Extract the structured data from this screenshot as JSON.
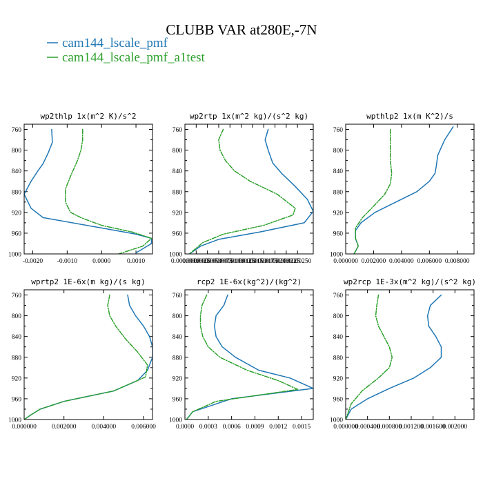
{
  "figure": {
    "title": "CLUBB VAR at280E,-7N",
    "legend": [
      {
        "label": "cam144_lscale_pmf",
        "color": "#1f77b4",
        "dash": "solid"
      },
      {
        "label": "cam144_lscale_pmf_a1test",
        "color": "#2ca02c",
        "dash": "dashdot"
      }
    ]
  },
  "chart_data": [
    {
      "type": "line",
      "title": "wp2thlp   1x(m^2 K)/s^2",
      "xlim": [
        -0.00225,
        0.00148
      ],
      "ylim": [
        1000,
        750
      ],
      "xticks": [
        -0.002,
        -0.001,
        0.0,
        0.001
      ],
      "xtick_labels": [
        "-0.0020",
        "-0.0010",
        "0.0000",
        "0.0010"
      ],
      "yticks": [
        760,
        800,
        840,
        880,
        920,
        960,
        1000
      ],
      "ytick_labels": [
        "760",
        "800",
        "840",
        "880",
        "920",
        "960",
        "1000"
      ],
      "series": [
        {
          "name": "cam144_lscale_pmf",
          "color": "#1f77b4",
          "dash": "solid",
          "x": [
            -0.00145,
            -0.00143,
            -0.00155,
            -0.0017,
            -0.00185,
            -0.00205,
            -0.00225,
            -0.00205,
            -0.0017,
            0.0,
            0.001,
            0.00145,
            0.00145,
            0.001
          ],
          "y": [
            760,
            785,
            805,
            826,
            840,
            860,
            885,
            912,
            930,
            950,
            962,
            970,
            980,
            998
          ]
        },
        {
          "name": "cam144_lscale_pmf_a1test",
          "color": "#2ca02c",
          "dash": "dashdot",
          "x": [
            -0.00055,
            -0.00055,
            -0.0006,
            -0.0007,
            -0.0009,
            -0.00105,
            -0.00105,
            -0.0009,
            -0.0006,
            0.0,
            0.0009,
            0.00145,
            0.0012,
            0.0005
          ],
          "y": [
            760,
            780,
            800,
            820,
            850,
            875,
            900,
            920,
            930,
            945,
            958,
            970,
            985,
            1000
          ]
        }
      ]
    },
    {
      "type": "line",
      "title": "wp2rtp   1x(m^2 kg)/(s^2 kg)",
      "xlim": [
        0.0,
        2.85e-05
      ],
      "ylim": [
        1000,
        750
      ],
      "xticks": [
        0.0,
        2.5e-06,
        5e-06,
        7.5e-06,
        1e-05,
        1.25e-05,
        1.5e-05,
        1.75e-05,
        2e-05,
        2.25e-05,
        2.5e-05
      ],
      "xtick_labels": [
        "0.0000000",
        "0.0000025",
        "0.0000050",
        "0.0000075",
        "0.0000100",
        "0.0000125",
        "0.0000150",
        "0.0000175",
        "0.0000200",
        "0.0000225",
        "0.0000250"
      ],
      "yticks": [
        760,
        800,
        840,
        880,
        920,
        960,
        1000
      ],
      "ytick_labels": [
        "760",
        "800",
        "840",
        "880",
        "920",
        "960",
        "1000"
      ],
      "series": [
        {
          "name": "cam144_lscale_pmf",
          "color": "#1f77b4",
          "dash": "solid",
          "x": [
            1.85e-05,
            1.78e-05,
            1.85e-05,
            1.95e-05,
            2.15e-05,
            2.45e-05,
            2.72e-05,
            2.85e-05,
            2.65e-05,
            1.65e-05,
            7.5e-06,
            3.5e-06,
            1e-06
          ],
          "y": [
            760,
            780,
            800,
            825,
            845,
            870,
            895,
            918,
            940,
            958,
            972,
            985,
            1000
          ]
        },
        {
          "name": "cam144_lscale_pmf_a1test",
          "color": "#2ca02c",
          "dash": "dashdot",
          "x": [
            8.5e-06,
            7.5e-06,
            7.8e-06,
            9e-06,
            1.1e-05,
            1.45e-05,
            2.05e-05,
            2.45e-05,
            2.4e-05,
            1.75e-05,
            8.5e-06,
            4e-06,
            1e-06
          ],
          "y": [
            760,
            780,
            800,
            820,
            840,
            860,
            885,
            912,
            925,
            945,
            962,
            978,
            1000
          ]
        }
      ]
    },
    {
      "type": "line",
      "title": "wpthlp2   1x(m K^2)/s",
      "xlim": [
        0.0,
        0.0092
      ],
      "ylim": [
        1000,
        750
      ],
      "xticks": [
        0.0,
        0.002,
        0.004,
        0.006,
        0.008
      ],
      "xtick_labels": [
        "0.000000",
        "0.002000",
        "0.004000",
        "0.006000",
        "0.008000"
      ],
      "yticks": [
        760,
        800,
        840,
        880,
        920,
        960,
        1000
      ],
      "ytick_labels": [
        "760",
        "800",
        "840",
        "880",
        "920",
        "960",
        "1000"
      ],
      "series": [
        {
          "name": "cam144_lscale_pmf",
          "color": "#1f77b4",
          "dash": "solid",
          "x": [
            0.0077,
            0.0071,
            0.0066,
            0.0065,
            0.0064,
            0.006,
            0.0051,
            0.0036,
            0.0021,
            0.0011,
            0.0007,
            0.0007,
            0.0009,
            0.0006
          ],
          "y": [
            755,
            780,
            810,
            830,
            845,
            860,
            880,
            900,
            920,
            940,
            955,
            970,
            985,
            1000
          ]
        },
        {
          "name": "cam144_lscale_pmf_a1test",
          "color": "#2ca02c",
          "dash": "dashdot",
          "x": [
            0.0032,
            0.0032,
            0.0032,
            0.0033,
            0.0032,
            0.0028,
            0.0021,
            0.0012,
            0.0007,
            0.0007,
            0.0009,
            0.0006
          ],
          "y": [
            760,
            790,
            820,
            845,
            865,
            885,
            905,
            930,
            950,
            970,
            985,
            1000
          ]
        }
      ]
    },
    {
      "type": "line",
      "title": "wprtp2   1E-6x(m kg)/(s kg)",
      "xlim": [
        0.0,
        0.00645
      ],
      "ylim": [
        1000,
        750
      ],
      "xticks": [
        0.0,
        0.002,
        0.004,
        0.006
      ],
      "xtick_labels": [
        "0.000000",
        "0.002000",
        "0.004000",
        "0.006000"
      ],
      "yticks": [
        760,
        800,
        840,
        880,
        920,
        960,
        1000
      ],
      "ytick_labels": [
        "760",
        "800",
        "840",
        "880",
        "920",
        "960",
        "1000"
      ],
      "series": [
        {
          "name": "cam144_lscale_pmf",
          "color": "#1f77b4",
          "dash": "solid",
          "x": [
            0.0052,
            0.0053,
            0.0056,
            0.006,
            0.0063,
            0.00645,
            0.00645,
            0.0062,
            0.0057,
            0.0045,
            0.002,
            0.0008,
            0.0003,
            0.0
          ],
          "y": [
            760,
            780,
            800,
            820,
            840,
            860,
            880,
            905,
            925,
            945,
            965,
            980,
            992,
            1000
          ]
        },
        {
          "name": "cam144_lscale_pmf_a1test",
          "color": "#2ca02c",
          "dash": "dashdot",
          "x": [
            0.0043,
            0.0042,
            0.0043,
            0.0046,
            0.0051,
            0.0057,
            0.0062,
            0.0061,
            0.0045,
            0.002,
            0.0008,
            0.0003,
            0.0
          ],
          "y": [
            760,
            780,
            800,
            820,
            845,
            870,
            895,
            918,
            945,
            965,
            980,
            992,
            1000
          ]
        }
      ]
    },
    {
      "type": "line",
      "title": "rcp2   1E-6x(kg^2)/(kg^2)",
      "xlim": [
        0.0,
        0.00165
      ],
      "ylim": [
        1000,
        750
      ],
      "xticks": [
        0.0,
        0.0003,
        0.0006,
        0.0009,
        0.0012,
        0.0015
      ],
      "xtick_labels": [
        "0.0000",
        "0.0003",
        "0.0006",
        "0.0009",
        "0.0012",
        "0.0015"
      ],
      "yticks": [
        760,
        800,
        840,
        880,
        920,
        960,
        1000
      ],
      "ytick_labels": [
        "760",
        "800",
        "840",
        "880",
        "920",
        "960",
        "1000"
      ],
      "series": [
        {
          "name": "cam144_lscale_pmf",
          "color": "#1f77b4",
          "dash": "solid",
          "x": [
            0.00055,
            0.0005,
            0.0004,
            0.00038,
            0.0004,
            0.00048,
            0.00065,
            0.00095,
            0.00135,
            0.00165,
            0.0006,
            0.0001,
            2e-05
          ],
          "y": [
            760,
            780,
            800,
            820,
            840,
            860,
            880,
            905,
            920,
            940,
            960,
            985,
            1000
          ]
        },
        {
          "name": "cam144_lscale_pmf_a1test",
          "color": "#2ca02c",
          "dash": "dashdot",
          "x": [
            0.00028,
            0.00022,
            0.0002,
            0.0002,
            0.00023,
            0.0003,
            0.00045,
            0.0008,
            0.0012,
            0.00145,
            0.0004,
            0.0001,
            2e-05
          ],
          "y": [
            760,
            780,
            800,
            820,
            840,
            860,
            880,
            905,
            925,
            942,
            965,
            985,
            1000
          ]
        }
      ]
    },
    {
      "type": "line",
      "title": "wp2rcp   1E-3x(m^2 kg)/(s^2 kg)",
      "xlim": [
        0.0,
        0.00235
      ],
      "ylim": [
        1000,
        750
      ],
      "xticks": [
        0.0,
        0.0004,
        0.0008,
        0.0012,
        0.0016,
        0.002
      ],
      "xtick_labels": [
        "0.000000",
        "0.000400",
        "0.000800",
        "0.001200",
        "0.001600",
        "0.002000"
      ],
      "yticks": [
        760,
        800,
        840,
        880,
        920,
        960,
        1000
      ],
      "ytick_labels": [
        "760",
        "800",
        "840",
        "880",
        "920",
        "960",
        "1000"
      ],
      "series": [
        {
          "name": "cam144_lscale_pmf",
          "color": "#1f77b4",
          "dash": "solid",
          "x": [
            0.00175,
            0.00155,
            0.0015,
            0.00152,
            0.00165,
            0.00175,
            0.00175,
            0.00155,
            0.00125,
            0.0008,
            0.0004,
            0.0001,
            0.0
          ],
          "y": [
            760,
            780,
            800,
            820,
            840,
            860,
            880,
            900,
            920,
            940,
            960,
            980,
            1000
          ]
        },
        {
          "name": "cam144_lscale_pmf_a1test",
          "color": "#2ca02c",
          "dash": "dashdot",
          "x": [
            0.0006,
            0.00057,
            0.00055,
            0.0006,
            0.0007,
            0.0008,
            0.00085,
            0.0008,
            0.0006,
            0.0003,
            0.0001,
            0.0
          ],
          "y": [
            760,
            780,
            800,
            820,
            840,
            860,
            880,
            900,
            920,
            945,
            970,
            1000
          ]
        }
      ]
    }
  ]
}
